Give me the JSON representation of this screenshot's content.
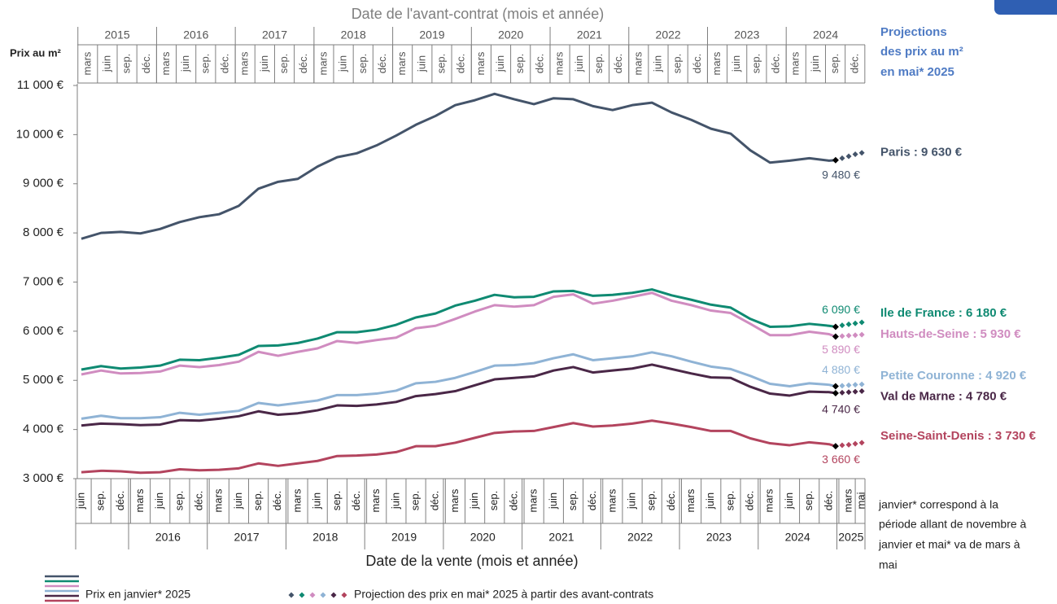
{
  "chart_data": {
    "type": "line",
    "title": "Date de la vente (mois et année)",
    "y_label": "Prix au m²",
    "top_axis": {
      "title": "Date de l'avant-contrat (mois et année)",
      "years": [
        2015,
        2016,
        2017,
        2018,
        2019,
        2020,
        2021,
        2022,
        2023,
        2024
      ],
      "ticks": [
        {
          "value": "2015-03",
          "label": "mars"
        },
        {
          "value": "2015-06",
          "label": "juin"
        },
        {
          "value": "2015-09",
          "label": "sep."
        },
        {
          "value": "2015-12",
          "label": "déc."
        },
        {
          "value": "2016-03",
          "label": "mars"
        },
        {
          "value": "2016-06",
          "label": "juin"
        },
        {
          "value": "2016-09",
          "label": "sep."
        },
        {
          "value": "2016-12",
          "label": "déc."
        },
        {
          "value": "2017-03",
          "label": "mars"
        },
        {
          "value": "2017-06",
          "label": "juin"
        },
        {
          "value": "2017-09",
          "label": "sep."
        },
        {
          "value": "2017-12",
          "label": "déc."
        },
        {
          "value": "2018-03",
          "label": "mars"
        },
        {
          "value": "2018-06",
          "label": "juin"
        },
        {
          "value": "2018-09",
          "label": "sep."
        },
        {
          "value": "2018-12",
          "label": "déc."
        },
        {
          "value": "2019-03",
          "label": "mars"
        },
        {
          "value": "2019-06",
          "label": "juin"
        },
        {
          "value": "2019-09",
          "label": "sep."
        },
        {
          "value": "2019-12",
          "label": "déc."
        },
        {
          "value": "2020-03",
          "label": "mars"
        },
        {
          "value": "2020-06",
          "label": "juin"
        },
        {
          "value": "2020-09",
          "label": "sep."
        },
        {
          "value": "2020-12",
          "label": "déc."
        },
        {
          "value": "2021-03",
          "label": "mars"
        },
        {
          "value": "2021-06",
          "label": "juin"
        },
        {
          "value": "2021-09",
          "label": "sep."
        },
        {
          "value": "2021-12",
          "label": "déc."
        },
        {
          "value": "2022-03",
          "label": "mars"
        },
        {
          "value": "2022-06",
          "label": "juin"
        },
        {
          "value": "2022-09",
          "label": "sep."
        },
        {
          "value": "2022-12",
          "label": "déc."
        },
        {
          "value": "2023-03",
          "label": "mars"
        },
        {
          "value": "2023-06",
          "label": "juin"
        },
        {
          "value": "2023-09",
          "label": "sep."
        },
        {
          "value": "2023-12",
          "label": "déc."
        },
        {
          "value": "2024-03",
          "label": "mars"
        },
        {
          "value": "2024-06",
          "label": "juin"
        },
        {
          "value": "2024-09",
          "label": "sep."
        },
        {
          "value": "2024-12",
          "label": "déc."
        }
      ]
    },
    "x_years": [
      2016,
      2017,
      2018,
      2019,
      2020,
      2021,
      2022,
      2023,
      2024,
      2025
    ],
    "xticks": [
      {
        "value": "2015-06",
        "label": "juin"
      },
      {
        "value": "2015-09",
        "label": "sep."
      },
      {
        "value": "2015-12",
        "label": "déc."
      },
      {
        "value": "2016-03",
        "label": "mars"
      },
      {
        "value": "2016-06",
        "label": "juin"
      },
      {
        "value": "2016-09",
        "label": "sep."
      },
      {
        "value": "2016-12",
        "label": "déc."
      },
      {
        "value": "2017-03",
        "label": "mars"
      },
      {
        "value": "2017-06",
        "label": "juin"
      },
      {
        "value": "2017-09",
        "label": "sep."
      },
      {
        "value": "2017-12",
        "label": "déc."
      },
      {
        "value": "2018-03",
        "label": "mars"
      },
      {
        "value": "2018-06",
        "label": "juin"
      },
      {
        "value": "2018-09",
        "label": "sep."
      },
      {
        "value": "2018-12",
        "label": "déc."
      },
      {
        "value": "2019-03",
        "label": "mars"
      },
      {
        "value": "2019-06",
        "label": "juin"
      },
      {
        "value": "2019-09",
        "label": "sep."
      },
      {
        "value": "2019-12",
        "label": "déc."
      },
      {
        "value": "2020-03",
        "label": "mars"
      },
      {
        "value": "2020-06",
        "label": "juin"
      },
      {
        "value": "2020-09",
        "label": "sep."
      },
      {
        "value": "2020-12",
        "label": "déc."
      },
      {
        "value": "2021-03",
        "label": "mars"
      },
      {
        "value": "2021-06",
        "label": "juin"
      },
      {
        "value": "2021-09",
        "label": "sep."
      },
      {
        "value": "2021-12",
        "label": "déc."
      },
      {
        "value": "2022-03",
        "label": "mars"
      },
      {
        "value": "2022-06",
        "label": "juin"
      },
      {
        "value": "2022-09",
        "label": "sep."
      },
      {
        "value": "2022-12",
        "label": "déc."
      },
      {
        "value": "2023-03",
        "label": "mars"
      },
      {
        "value": "2023-06",
        "label": "juin"
      },
      {
        "value": "2023-09",
        "label": "sep."
      },
      {
        "value": "2023-12",
        "label": "déc."
      },
      {
        "value": "2024-03",
        "label": "mars"
      },
      {
        "value": "2024-06",
        "label": "juin"
      },
      {
        "value": "2024-09",
        "label": "sep."
      },
      {
        "value": "2024-12",
        "label": "déc."
      },
      {
        "value": "2025-03",
        "label": "mars"
      },
      {
        "value": "2025-05",
        "label": "mai"
      }
    ],
    "ylim": [
      3000,
      11000
    ],
    "yticks": [
      {
        "value": 3000,
        "label": "3 000 €"
      },
      {
        "value": 4000,
        "label": "4 000 €"
      },
      {
        "value": 5000,
        "label": "5 000 €"
      },
      {
        "value": 6000,
        "label": "6 000 €"
      },
      {
        "value": 7000,
        "label": "7 000 €"
      },
      {
        "value": 8000,
        "label": "8 000 €"
      },
      {
        "value": 9000,
        "label": "9 000 €"
      },
      {
        "value": 10000,
        "label": "10 000 €"
      },
      {
        "value": 11000,
        "label": "11 000 €"
      }
    ],
    "grid": false,
    "x": [
      "2015-06",
      "2015-09",
      "2015-12",
      "2016-03",
      "2016-06",
      "2016-09",
      "2016-12",
      "2017-03",
      "2017-06",
      "2017-09",
      "2017-12",
      "2018-03",
      "2018-06",
      "2018-09",
      "2018-12",
      "2019-03",
      "2019-06",
      "2019-09",
      "2019-12",
      "2020-03",
      "2020-06",
      "2020-09",
      "2020-12",
      "2021-03",
      "2021-06",
      "2021-09",
      "2021-12",
      "2022-03",
      "2022-06",
      "2022-09",
      "2022-12",
      "2023-03",
      "2023-06",
      "2023-09",
      "2023-12",
      "2024-03",
      "2024-06",
      "2024-09",
      "2024-12",
      "2025-01"
    ],
    "projection_x": [
      "2025-02",
      "2025-03",
      "2025-04",
      "2025-05"
    ],
    "series": [
      {
        "name": "Paris : 9 630 €",
        "color": "#44546a",
        "values": [
          7880,
          8000,
          8020,
          7990,
          8080,
          8220,
          8320,
          8380,
          8550,
          8900,
          9040,
          9100,
          9350,
          9540,
          9620,
          9780,
          9980,
          10200,
          10380,
          10600,
          10700,
          10830,
          10720,
          10620,
          10740,
          10720,
          10580,
          10500,
          10600,
          10650,
          10450,
          10300,
          10120,
          10020,
          9680,
          9430,
          9470,
          9520,
          9470,
          9480
        ],
        "value_labels": [
          null,
          null,
          null,
          null,
          null,
          null,
          null,
          null,
          null,
          null,
          null,
          null,
          null,
          null,
          null,
          null,
          null,
          null,
          null,
          null,
          null,
          null,
          null,
          null,
          null,
          null,
          null,
          null,
          null,
          null,
          null,
          null,
          null,
          null,
          null,
          null,
          null,
          null,
          null,
          "9 480 €"
        ],
        "projection": [
          9520,
          9560,
          9600,
          9630
        ]
      },
      {
        "name": "Ile de France : 6 180 €",
        "color": "#0f8a72",
        "values": [
          5220,
          5290,
          5240,
          5260,
          5300,
          5420,
          5410,
          5460,
          5520,
          5700,
          5710,
          5760,
          5850,
          5980,
          5980,
          6030,
          6130,
          6280,
          6360,
          6520,
          6620,
          6740,
          6690,
          6700,
          6810,
          6820,
          6720,
          6740,
          6780,
          6850,
          6730,
          6640,
          6540,
          6480,
          6250,
          6090,
          6100,
          6150,
          6110,
          6090
        ],
        "value_labels": [
          null,
          null,
          null,
          null,
          null,
          null,
          null,
          null,
          null,
          null,
          null,
          null,
          null,
          null,
          null,
          null,
          null,
          null,
          null,
          null,
          null,
          null,
          null,
          null,
          null,
          null,
          null,
          null,
          null,
          null,
          null,
          null,
          null,
          null,
          null,
          null,
          null,
          null,
          null,
          "6 090 €"
        ],
        "projection": [
          6120,
          6140,
          6160,
          6180
        ]
      },
      {
        "name": "Hauts-de-Seine : 5 930 €",
        "color": "#d08cc0",
        "values": [
          5120,
          5200,
          5140,
          5150,
          5180,
          5300,
          5270,
          5310,
          5380,
          5580,
          5500,
          5580,
          5650,
          5800,
          5760,
          5820,
          5870,
          6060,
          6110,
          6250,
          6400,
          6530,
          6500,
          6530,
          6700,
          6750,
          6560,
          6620,
          6700,
          6780,
          6620,
          6530,
          6420,
          6370,
          6150,
          5920,
          5920,
          5990,
          5940,
          5890
        ],
        "value_labels": [
          null,
          null,
          null,
          null,
          null,
          null,
          null,
          null,
          null,
          null,
          null,
          null,
          null,
          null,
          null,
          null,
          null,
          null,
          null,
          null,
          null,
          null,
          null,
          null,
          null,
          null,
          null,
          null,
          null,
          null,
          null,
          null,
          null,
          null,
          null,
          null,
          null,
          null,
          null,
          "5 890 €"
        ],
        "projection": [
          5900,
          5910,
          5920,
          5930
        ]
      },
      {
        "name": "Petite Couronne : 4 920 €",
        "color": "#8fb3d5",
        "values": [
          4220,
          4280,
          4230,
          4230,
          4250,
          4340,
          4300,
          4340,
          4380,
          4540,
          4490,
          4540,
          4590,
          4700,
          4700,
          4730,
          4790,
          4940,
          4970,
          5050,
          5170,
          5300,
          5310,
          5350,
          5450,
          5530,
          5410,
          5450,
          5490,
          5570,
          5490,
          5380,
          5280,
          5230,
          5090,
          4930,
          4880,
          4940,
          4910,
          4880
        ],
        "value_labels": [
          null,
          null,
          null,
          null,
          null,
          null,
          null,
          null,
          null,
          null,
          null,
          null,
          null,
          null,
          null,
          null,
          null,
          null,
          null,
          null,
          null,
          null,
          null,
          null,
          null,
          null,
          null,
          null,
          null,
          null,
          null,
          null,
          null,
          null,
          null,
          null,
          null,
          null,
          null,
          "4 880 €"
        ],
        "projection": [
          4890,
          4900,
          4910,
          4920
        ]
      },
      {
        "name": "Val de Marne : 4 780 €",
        "color": "#4a2747",
        "values": [
          4080,
          4120,
          4110,
          4090,
          4100,
          4190,
          4180,
          4220,
          4270,
          4370,
          4300,
          4330,
          4390,
          4490,
          4480,
          4510,
          4560,
          4680,
          4720,
          4780,
          4900,
          5020,
          5050,
          5080,
          5200,
          5270,
          5160,
          5200,
          5240,
          5320,
          5230,
          5140,
          5060,
          5050,
          4870,
          4730,
          4690,
          4770,
          4760,
          4740
        ],
        "value_labels": [
          null,
          null,
          null,
          null,
          null,
          null,
          null,
          null,
          null,
          null,
          null,
          null,
          null,
          null,
          null,
          null,
          null,
          null,
          null,
          null,
          null,
          null,
          null,
          null,
          null,
          null,
          null,
          null,
          null,
          null,
          null,
          null,
          null,
          null,
          null,
          null,
          null,
          null,
          null,
          "4 740 €"
        ],
        "projection": [
          4750,
          4760,
          4770,
          4780
        ]
      },
      {
        "name": "Seine-Saint-Denis : 3 730 €",
        "color": "#b3445e",
        "values": [
          3130,
          3160,
          3150,
          3120,
          3130,
          3190,
          3170,
          3180,
          3210,
          3310,
          3260,
          3310,
          3360,
          3460,
          3470,
          3490,
          3540,
          3660,
          3660,
          3730,
          3830,
          3930,
          3960,
          3970,
          4050,
          4130,
          4060,
          4080,
          4120,
          4180,
          4120,
          4050,
          3970,
          3970,
          3820,
          3720,
          3680,
          3740,
          3700,
          3660
        ],
        "value_labels": [
          null,
          null,
          null,
          null,
          null,
          null,
          null,
          null,
          null,
          null,
          null,
          null,
          null,
          null,
          null,
          null,
          null,
          null,
          null,
          null,
          null,
          null,
          null,
          null,
          null,
          null,
          null,
          null,
          null,
          null,
          null,
          null,
          null,
          null,
          null,
          null,
          null,
          null,
          null,
          "3 660 €"
        ],
        "projection": [
          3680,
          3690,
          3710,
          3730
        ]
      }
    ],
    "projection_heading": [
      "Projections",
      "des prix au m²",
      "en mai* 2025"
    ],
    "legend": {
      "actual": "Prix en janvier* 2025",
      "projection": "Projection des prix en mai* 2025 à partir des avant-contrats"
    },
    "footnote": [
      "janvier* correspond à la",
      "période allant de novembre à",
      "janvier et mai* va de mars à",
      "mai"
    ]
  }
}
